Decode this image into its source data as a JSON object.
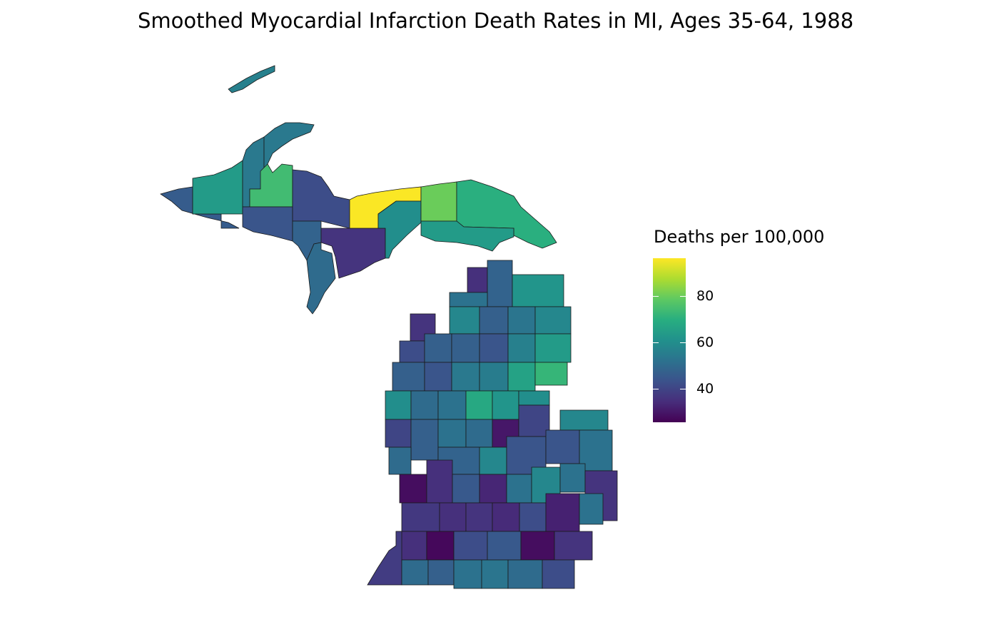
{
  "chart_data": {
    "type": "choropleth",
    "title": "Smoothed Myocardial Infarction Death Rates in MI, Ages 35-64, 1988",
    "legend": {
      "title": "Deaths per 100,000",
      "position": "right",
      "colormap": "viridis",
      "range": [
        25.5,
        96.3
      ],
      "ticks": [
        40,
        60,
        80
      ]
    },
    "upper_peninsula_values": [
      46,
      64,
      54,
      54,
      74,
      44,
      42,
      48,
      50,
      36,
      96,
      60,
      80,
      70,
      64,
      56
    ],
    "lower_peninsula_values": [
      35,
      48,
      62,
      52,
      58,
      47,
      53,
      58,
      36,
      42,
      47,
      47,
      44,
      56,
      64,
      47,
      44,
      54,
      55,
      66,
      72,
      60,
      50,
      52,
      68,
      62,
      60,
      40,
      47,
      52,
      50,
      30,
      40,
      58,
      50,
      48,
      58,
      44,
      44,
      52,
      28,
      35,
      45,
      33,
      52,
      58,
      52,
      36,
      37,
      35,
      36,
      34,
      42,
      32,
      52,
      35,
      27,
      42,
      45,
      28,
      36,
      38,
      50,
      47,
      52,
      53,
      50,
      42
    ]
  }
}
